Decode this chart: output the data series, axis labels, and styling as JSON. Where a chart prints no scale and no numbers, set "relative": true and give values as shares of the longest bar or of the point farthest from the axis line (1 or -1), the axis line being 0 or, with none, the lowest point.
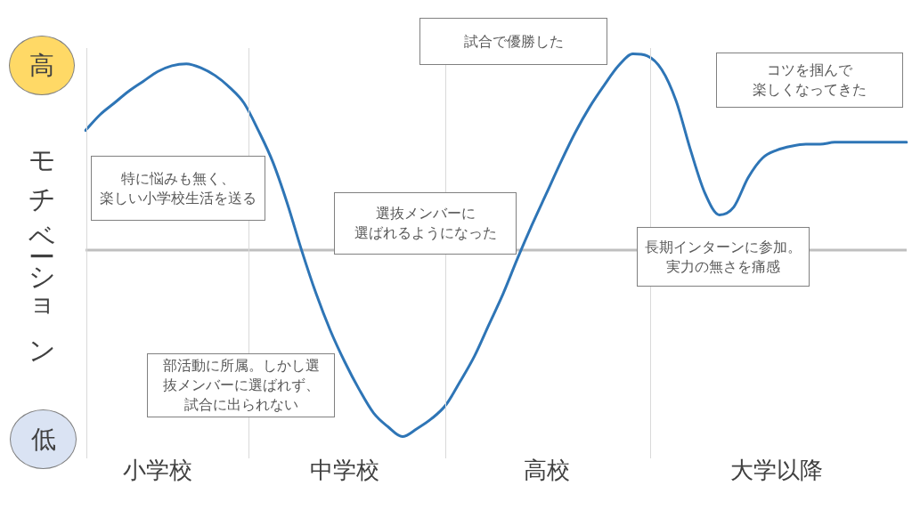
{
  "chart_data": {
    "type": "line",
    "relative": true,
    "ylabel": "モチベーション",
    "categories": [
      null,
      null,
      null,
      null,
      null,
      "小学校",
      null,
      null,
      null,
      null,
      null,
      null,
      null,
      null,
      null,
      null,
      null,
      null,
      "中学校",
      null,
      null,
      null,
      null,
      null,
      null,
      null,
      null,
      null,
      null,
      null,
      null,
      null,
      "高校",
      null,
      null,
      null,
      null,
      null,
      null,
      null,
      null,
      null,
      null,
      null,
      null,
      null,
      null,
      null,
      "大学以降",
      null,
      null,
      null,
      null,
      null,
      null,
      null,
      null,
      null
    ],
    "values": [
      0.61,
      0.69,
      0.75,
      0.81,
      0.86,
      0.91,
      0.94,
      0.95,
      0.93,
      0.89,
      0.83,
      0.75,
      0.61,
      0.45,
      0.24,
      0,
      -0.22,
      -0.41,
      -0.57,
      -0.71,
      -0.83,
      -0.9,
      -0.95,
      -0.91,
      -0.86,
      -0.79,
      -0.67,
      -0.54,
      -0.38,
      -0.22,
      -0.04,
      0.13,
      0.29,
      0.45,
      0.6,
      0.73,
      0.84,
      0.94,
      1,
      0.99,
      0.92,
      0.76,
      0.51,
      0.29,
      0.18,
      0.22,
      0.37,
      0.47,
      0.51,
      0.53,
      0.54,
      0.54,
      0.55,
      0.55,
      0.55,
      0.55,
      0.55,
      0.55
    ],
    "color": "#2e75b6",
    "marker": "none",
    "line_style": "solid",
    "annotations": [
      "高",
      "低",
      "特に悩みも無く、楽しい小学校生活を送る",
      "部活動に所属。しかし選抜メンバーに選ばれず、試合に出られない",
      "選抜メンバーに選ばれるようになった",
      "試合で優勝した",
      "長期インターンに参加。実力の無さを痛感",
      "コツを掴んで楽しくなってきた"
    ]
  }
}
